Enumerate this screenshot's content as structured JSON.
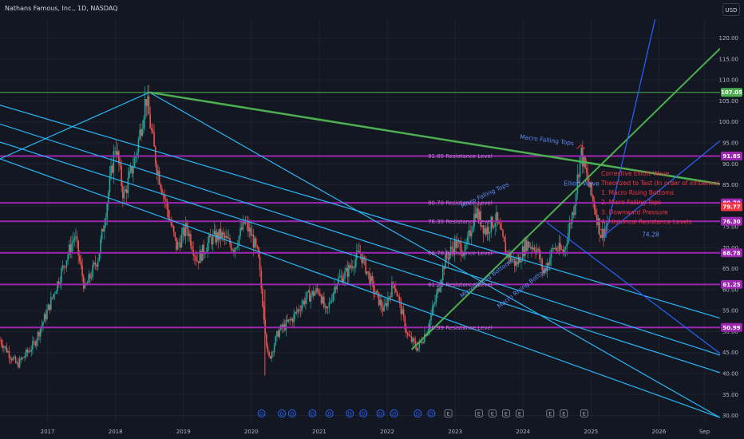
{
  "header": {
    "title": "Nathans Famous, Inc., 1D, NASDAQ",
    "currency_button": "USD"
  },
  "colors": {
    "background": "#131722",
    "grid": "#1e222d",
    "axis_text": "#b2b5be",
    "up_candle": "#26a69a",
    "down_candle": "#ef5350",
    "resistance": "#9c27b0",
    "resistance_label": "#c079d6",
    "cyan_channel": "#29b6f6",
    "blue_line": "#2962ff",
    "green_line": "#4caf50",
    "annotation_red": "#f23645",
    "annotation_blue": "#5b8bf5"
  },
  "chart_data": {
    "type": "candlestick",
    "x_axis": {
      "tick_labels": [
        "2017",
        "2018",
        "2019",
        "2020",
        "2021",
        "2022",
        "2023",
        "2024",
        "2025",
        "2026",
        "Sep"
      ],
      "range": [
        2016.3,
        2026.9
      ]
    },
    "y_axis": {
      "tick_labels": [
        "30.00",
        "35.00",
        "40.00",
        "45.00",
        "50.00",
        "55.00",
        "60.00",
        "65.00",
        "70.00",
        "75.00",
        "80.00",
        "85.00",
        "90.00",
        "95.00",
        "100.00",
        "105.00",
        "110.00",
        "115.00",
        "120.00"
      ],
      "range": [
        28.2,
        124.5
      ],
      "price_tags": [
        {
          "value": 107.05,
          "label": "107.05",
          "color": "#4caf50"
        },
        {
          "value": 91.85,
          "label": "91.85",
          "color": "#9c27b0"
        },
        {
          "value": 80.7,
          "label": "80.70",
          "color": "#9c27b0"
        },
        {
          "value": 79.77,
          "label": "79.77",
          "color": "#f23645"
        },
        {
          "value": 76.3,
          "label": "76.30",
          "color": "#9c27b0"
        },
        {
          "value": 68.78,
          "label": "68.78",
          "color": "#9c27b0"
        },
        {
          "value": 61.25,
          "label": "61.25",
          "color": "#9c27b0"
        },
        {
          "value": 50.99,
          "label": "50.99",
          "color": "#9c27b0"
        }
      ]
    },
    "resistance_levels": [
      {
        "value": 91.85,
        "label": "91.85 Resistance Level"
      },
      {
        "value": 80.7,
        "label": "80.70 Resistance Level"
      },
      {
        "value": 76.3,
        "label": "76.30 Resistance Level"
      },
      {
        "value": 68.78,
        "label": "68.78 Resistance Level"
      },
      {
        "value": 61.25,
        "label": "61.25 Resistance Level"
      },
      {
        "value": 50.99,
        "label": "50.99 Resistance Level"
      }
    ],
    "horizontal_lines": [
      {
        "value": 107.05,
        "color": "#4caf50"
      }
    ],
    "price_path": [
      [
        2016.3,
        48
      ],
      [
        2016.55,
        42
      ],
      [
        2016.8,
        47
      ],
      [
        2017.0,
        55
      ],
      [
        2017.2,
        64
      ],
      [
        2017.4,
        73
      ],
      [
        2017.55,
        60
      ],
      [
        2017.75,
        68
      ],
      [
        2017.85,
        78
      ],
      [
        2018.0,
        95
      ],
      [
        2018.12,
        82
      ],
      [
        2018.3,
        92
      ],
      [
        2018.45,
        106
      ],
      [
        2018.6,
        90
      ],
      [
        2018.75,
        80
      ],
      [
        2018.9,
        70
      ],
      [
        2019.05,
        75
      ],
      [
        2019.2,
        67
      ],
      [
        2019.4,
        72
      ],
      [
        2019.55,
        73
      ],
      [
        2019.75,
        70
      ],
      [
        2019.9,
        76
      ],
      [
        2020.0,
        73
      ],
      [
        2020.1,
        68
      ],
      [
        2020.25,
        43
      ],
      [
        2020.4,
        50
      ],
      [
        2020.6,
        53
      ],
      [
        2020.8,
        58
      ],
      [
        2021.0,
        60
      ],
      [
        2021.1,
        54
      ],
      [
        2021.25,
        62
      ],
      [
        2021.4,
        64
      ],
      [
        2021.6,
        69
      ],
      [
        2021.8,
        60
      ],
      [
        2021.95,
        55
      ],
      [
        2022.1,
        62
      ],
      [
        2022.3,
        49
      ],
      [
        2022.45,
        46
      ],
      [
        2022.6,
        51
      ],
      [
        2022.75,
        60
      ],
      [
        2022.85,
        67
      ],
      [
        2023.0,
        71
      ],
      [
        2023.15,
        69
      ],
      [
        2023.3,
        79
      ],
      [
        2023.45,
        74
      ],
      [
        2023.6,
        77
      ],
      [
        2023.75,
        69
      ],
      [
        2023.9,
        66
      ],
      [
        2024.05,
        71
      ],
      [
        2024.2,
        70
      ],
      [
        2024.3,
        64
      ],
      [
        2024.45,
        70
      ],
      [
        2024.6,
        69
      ],
      [
        2024.75,
        80
      ],
      [
        2024.85,
        93
      ],
      [
        2024.95,
        86
      ],
      [
        2025.05,
        80
      ],
      [
        2025.15,
        73
      ],
      [
        2025.25,
        76
      ]
    ],
    "trend_lines": [
      {
        "points": [
          [
            2016.3,
            91.2
          ],
          [
            2018.5,
            107.05
          ],
          [
            2026.9,
            29.5
          ]
        ],
        "color": "#29b6f6"
      },
      {
        "points": [
          [
            2016.3,
            104
          ],
          [
            2026.9,
            53.2
          ]
        ],
        "color": "#29b6f6"
      },
      {
        "points": [
          [
            2016.3,
            99.5
          ],
          [
            2026.9,
            44.4
          ]
        ],
        "color": "#29b6f6"
      },
      {
        "points": [
          [
            2016.3,
            95.2
          ],
          [
            2026.9,
            40.2
          ]
        ],
        "color": "#29b6f6"
      },
      {
        "points": [
          [
            2016.3,
            91.2
          ],
          [
            2026.9,
            29.5
          ]
        ],
        "color": "#29b6f6"
      },
      {
        "points": [
          [
            2018.5,
            107.05
          ],
          [
            2026.9,
            85.2
          ]
        ],
        "color": "#4caf50",
        "width": 2.5
      },
      {
        "points": [
          [
            2022.36,
            45.7
          ],
          [
            2026.9,
            117.5
          ]
        ],
        "color": "#4caf50",
        "width": 2
      },
      {
        "points": [
          [
            2025.2,
            72
          ],
          [
            2026.05,
            132
          ]
        ],
        "color": "#2962ff"
      },
      {
        "points": [
          [
            2024.35,
            76
          ],
          [
            2026.9,
            44.8
          ]
        ],
        "color": "#2962ff"
      },
      {
        "points": [
          [
            2025.2,
            73
          ],
          [
            2026.9,
            95.5
          ]
        ],
        "color": "#2962ff"
      }
    ],
    "annotations": [
      {
        "text": "Macro Falling Tops",
        "x": 2023.95,
        "y": 96.0,
        "color": "#5b8bf5",
        "rotate": 7
      },
      {
        "text": "Macro Rising Bottoms",
        "x": 2023.65,
        "y": 55.5,
        "color": "#5b8bf5",
        "rotate": -38
      },
      {
        "text": "Micro Rising Bottoms",
        "x": 2023.1,
        "y": 58.0,
        "color": "#5b8bf5",
        "rotate": -35
      },
      {
        "text": "Micro Falling Tops",
        "x": 2023.1,
        "y": 79.5,
        "color": "#5b8bf5",
        "rotate": -25
      },
      {
        "text": "Elliott Wave",
        "x": 2024.6,
        "y": 84.8,
        "color": "#5b8bf5",
        "rotate": 0
      },
      {
        "text": "Corrective Elliott Wave",
        "x": 2025.15,
        "y": 87.2,
        "color": "#f23645",
        "rotate": 0
      },
      {
        "text": "Theorized to Test (In order of influence):",
        "x": 2025.15,
        "y": 84.9,
        "color": "#f23645",
        "rotate": 0
      },
      {
        "text": "1. Macro Rising Bottoms",
        "x": 2025.15,
        "y": 82.6,
        "color": "#f23645",
        "rotate": 0
      },
      {
        "text": "2. Micro Falling Tops",
        "x": 2025.15,
        "y": 80.3,
        "color": "#f23645",
        "rotate": 0
      },
      {
        "text": "3. Downward Pressure",
        "x": 2025.15,
        "y": 78.0,
        "color": "#f23645",
        "rotate": 0
      },
      {
        "text": "4. Historical Resistance Levels",
        "x": 2025.15,
        "y": 75.7,
        "color": "#f23645",
        "rotate": 0
      },
      {
        "text": "74.28",
        "x": 2025.75,
        "y": 72.6,
        "color": "#5b8bf5",
        "rotate": 0
      }
    ],
    "markers": [
      {
        "x": 2020.15,
        "label": "D"
      },
      {
        "x": 2020.45,
        "label": "D"
      },
      {
        "x": 2020.6,
        "label": "D"
      },
      {
        "x": 2020.9,
        "label": "D"
      },
      {
        "x": 2021.15,
        "label": "D"
      },
      {
        "x": 2021.45,
        "label": "D"
      },
      {
        "x": 2021.65,
        "label": "D"
      },
      {
        "x": 2021.9,
        "label": "D"
      },
      {
        "x": 2022.1,
        "label": "D"
      },
      {
        "x": 2022.45,
        "label": "D"
      },
      {
        "x": 2022.65,
        "label": "D"
      },
      {
        "x": 2022.9,
        "label": "E"
      },
      {
        "x": 2023.35,
        "label": "E"
      },
      {
        "x": 2023.55,
        "label": "E"
      },
      {
        "x": 2023.75,
        "label": "E"
      },
      {
        "x": 2023.95,
        "label": "E"
      },
      {
        "x": 2024.4,
        "label": "E"
      },
      {
        "x": 2024.6,
        "label": "E"
      },
      {
        "x": 2024.9,
        "label": "E"
      }
    ]
  }
}
